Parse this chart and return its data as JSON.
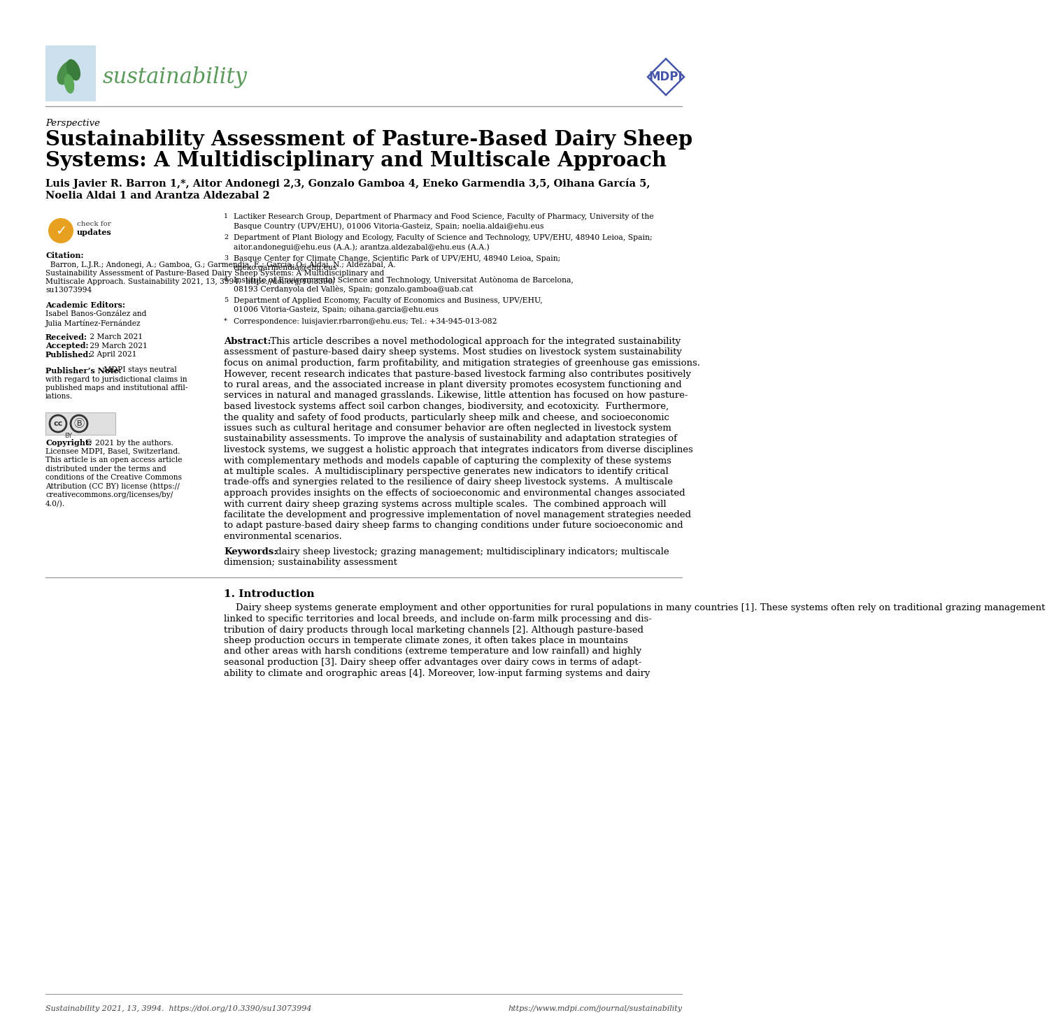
{
  "bg_color": "#ffffff",
  "line_color": "#999999",
  "journal_name": "sustainability",
  "journal_color": "#5a9a5a",
  "journal_box_color": "#cde0ed",
  "perspective_text": "Perspective",
  "title_line1": "Sustainability Assessment of Pasture-Based Dairy Sheep",
  "title_line2": "Systems: A Multidisciplinary and Multiscale Approach",
  "authors_line1": "Luis Javier R. Barron 1,*, Aitor Andonegi 2,3, Gonzalo Gamboa 4, Eneko Garmendia 3,5, Oihana García 5,",
  "authors_line2": "Noelia Aldai 1 and Arantza Aldezabal 2",
  "aff1_line1": "Lactiker Research Group, Department of Pharmacy and Food Science, Faculty of Pharmacy, University of the",
  "aff1_line2": "Basque Country (UPV/EHU), 01006 Vitoria-Gasteiz, Spain; noelia.aldai@ehu.eus",
  "aff2_line1": "Department of Plant Biology and Ecology, Faculty of Science and Technology, UPV/EHU, 48940 Leioa, Spain;",
  "aff2_line2": "aitor.andonegui@ehu.eus (A.A.); arantza.aldezabal@ehu.eus (A.A.)",
  "aff3_line1": "Basque Center for Climate Change, Scientific Park of UPV/EHU, 48940 Leioa, Spain;",
  "aff3_line2": "eneko.garmendia@ehu.eus",
  "aff4_line1": "Institute of Environmental Science and Technology, Universitat Autònoma de Barcelona,",
  "aff4_line2": "08193 Cerdanyola del Vallès, Spain; gonzalo.gamboa@uab.cat",
  "aff5_line1": "Department of Applied Economy, Faculty of Economics and Business, UPV/EHU,",
  "aff5_line2": "01006 Vitoria-Gasteiz, Spain; oihana.garcia@ehu.eus",
  "aff_star_line1": "Correspondence: luisjavier.rbarron@ehu.eus; Tel.: +34-945-013-082",
  "abstract_bold": "Abstract:",
  "abstract_body": " This article describes a novel methodological approach for the integrated sustainability\nassessment of pasture-based dairy sheep systems. Most studies on livestock system sustainability\nfocus on animal production, farm profitability, and mitigation strategies of greenhouse gas emissions.\nHowever, recent research indicates that pasture-based livestock farming also contributes positively\nto rural areas, and the associated increase in plant diversity promotes ecosystem functioning and\nservices in natural and managed grasslands. Likewise, little attention has focused on how pasture-\nbased livestock systems affect soil carbon changes, biodiversity, and ecotoxicity.  Furthermore,\nthe quality and safety of food products, particularly sheep milk and cheese, and socioeconomic\nissues such as cultural heritage and consumer behavior are often neglected in livestock system\nsustainability assessments. To improve the analysis of sustainability and adaptation strategies of\nlivestock systems, we suggest a holistic approach that integrates indicators from diverse disciplines\nwith complementary methods and models capable of capturing the complexity of these systems\nat multiple scales.  A multidisciplinary perspective generates new indicators to identify critical\ntrade-offs and synergies related to the resilience of dairy sheep livestock systems.  A multiscale\napproach provides insights on the effects of socioeconomic and environmental changes associated\nwith current dairy sheep grazing systems across multiple scales.  The combined approach will\nfacilitate the development and progressive implementation of novel management strategies needed\nto adapt pasture-based dairy sheep farms to changing conditions under future socioeconomic and\nenvironmental scenarios.",
  "keywords_bold": "Keywords:",
  "keywords_body": " dairy sheep livestock; grazing management; multidisciplinary indicators; multiscale\ndimension; sustainability assessment",
  "citation_bold": "Citation:",
  "citation_body": "  Barron, L.J.R.; Andonegi, A.; Gamboa, G.; Garmendia, E.; García, O.; Aldai, N.; Aldezabal, A.\nSustainability Assessment of Pasture-Based Dairy Sheep Systems: A Multidisciplinary and\nMultiscale Approach. Sustainability 2021, 13, 3994.  https://doi.org/10.3390/\nsu13073994",
  "academic_editors_bold": "Academic Editors:",
  "academic_editors_body": " Isabel Banos-González and\nJulia Martínez-Fernández",
  "received_bold": "Received:",
  "received_body": " 2 March 2021",
  "accepted_bold": "Accepted:",
  "accepted_body": " 29 March 2021",
  "published_bold": "Published:",
  "published_body": " 2 April 2021",
  "publisher_bold": "Publisher’s Note:",
  "publisher_body": " MDPI stays neutral\nwith regard to jurisdictional claims in\npublished maps and institutional affil-\niations.",
  "copyright_bold": "Copyright:",
  "copyright_body": " © 2021 by the authors.\nLicensee MDPI, Basel, Switzerland.\nThis article is an open access article\ndistributed under the terms and\nconditions of the Creative Commons\nAttribution (CC BY) license (https://\ncreativecommons.org/licenses/by/\n4.0/).",
  "intro_heading": "1. Introduction",
  "intro_body": "    Dairy sheep systems generate employment and other opportunities for rural populations in many countries [1]. These systems often rely on traditional grazing management\nlinked to specific territories and local breeds, and include on-farm milk processing and dis-\ntribution of dairy products through local marketing channels [2]. Although pasture-based\nsheep production occurs in temperate climate zones, it often takes place in mountains\nand other areas with harsh conditions (extreme temperature and low rainfall) and highly\nseasonal production [3]. Dairy sheep offer advantages over dairy cows in terms of adapt-\nability to climate and orographic areas [4]. Moreover, low-input farming systems and dairy",
  "footer_left": "Sustainability 2021, 13, 3994.  https://doi.org/10.3390/su13073994",
  "footer_right": "https://www.mdpi.com/journal/sustainability",
  "mdpi_color": "#4455aa"
}
